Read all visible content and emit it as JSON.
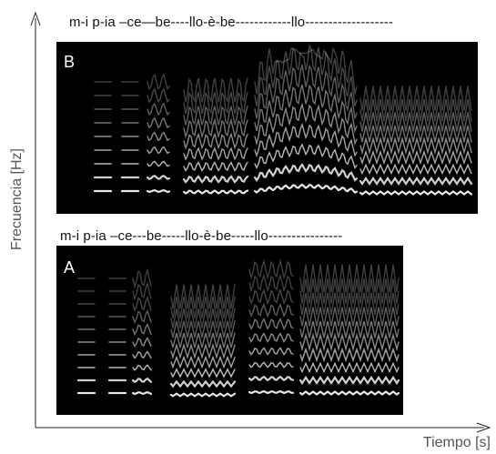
{
  "axes": {
    "x_label": "Tiempo [s]",
    "y_label": "Frecuencia [Hz]"
  },
  "panels": [
    {
      "letter": "B",
      "lyrics": "m-i   p-ia –ce—be----llo-è-be------------llo-------------------"
    },
    {
      "letter": "A",
      "lyrics": "m-i   p-ia –ce---be-----llo-è-be-----llo----------------"
    }
  ]
}
